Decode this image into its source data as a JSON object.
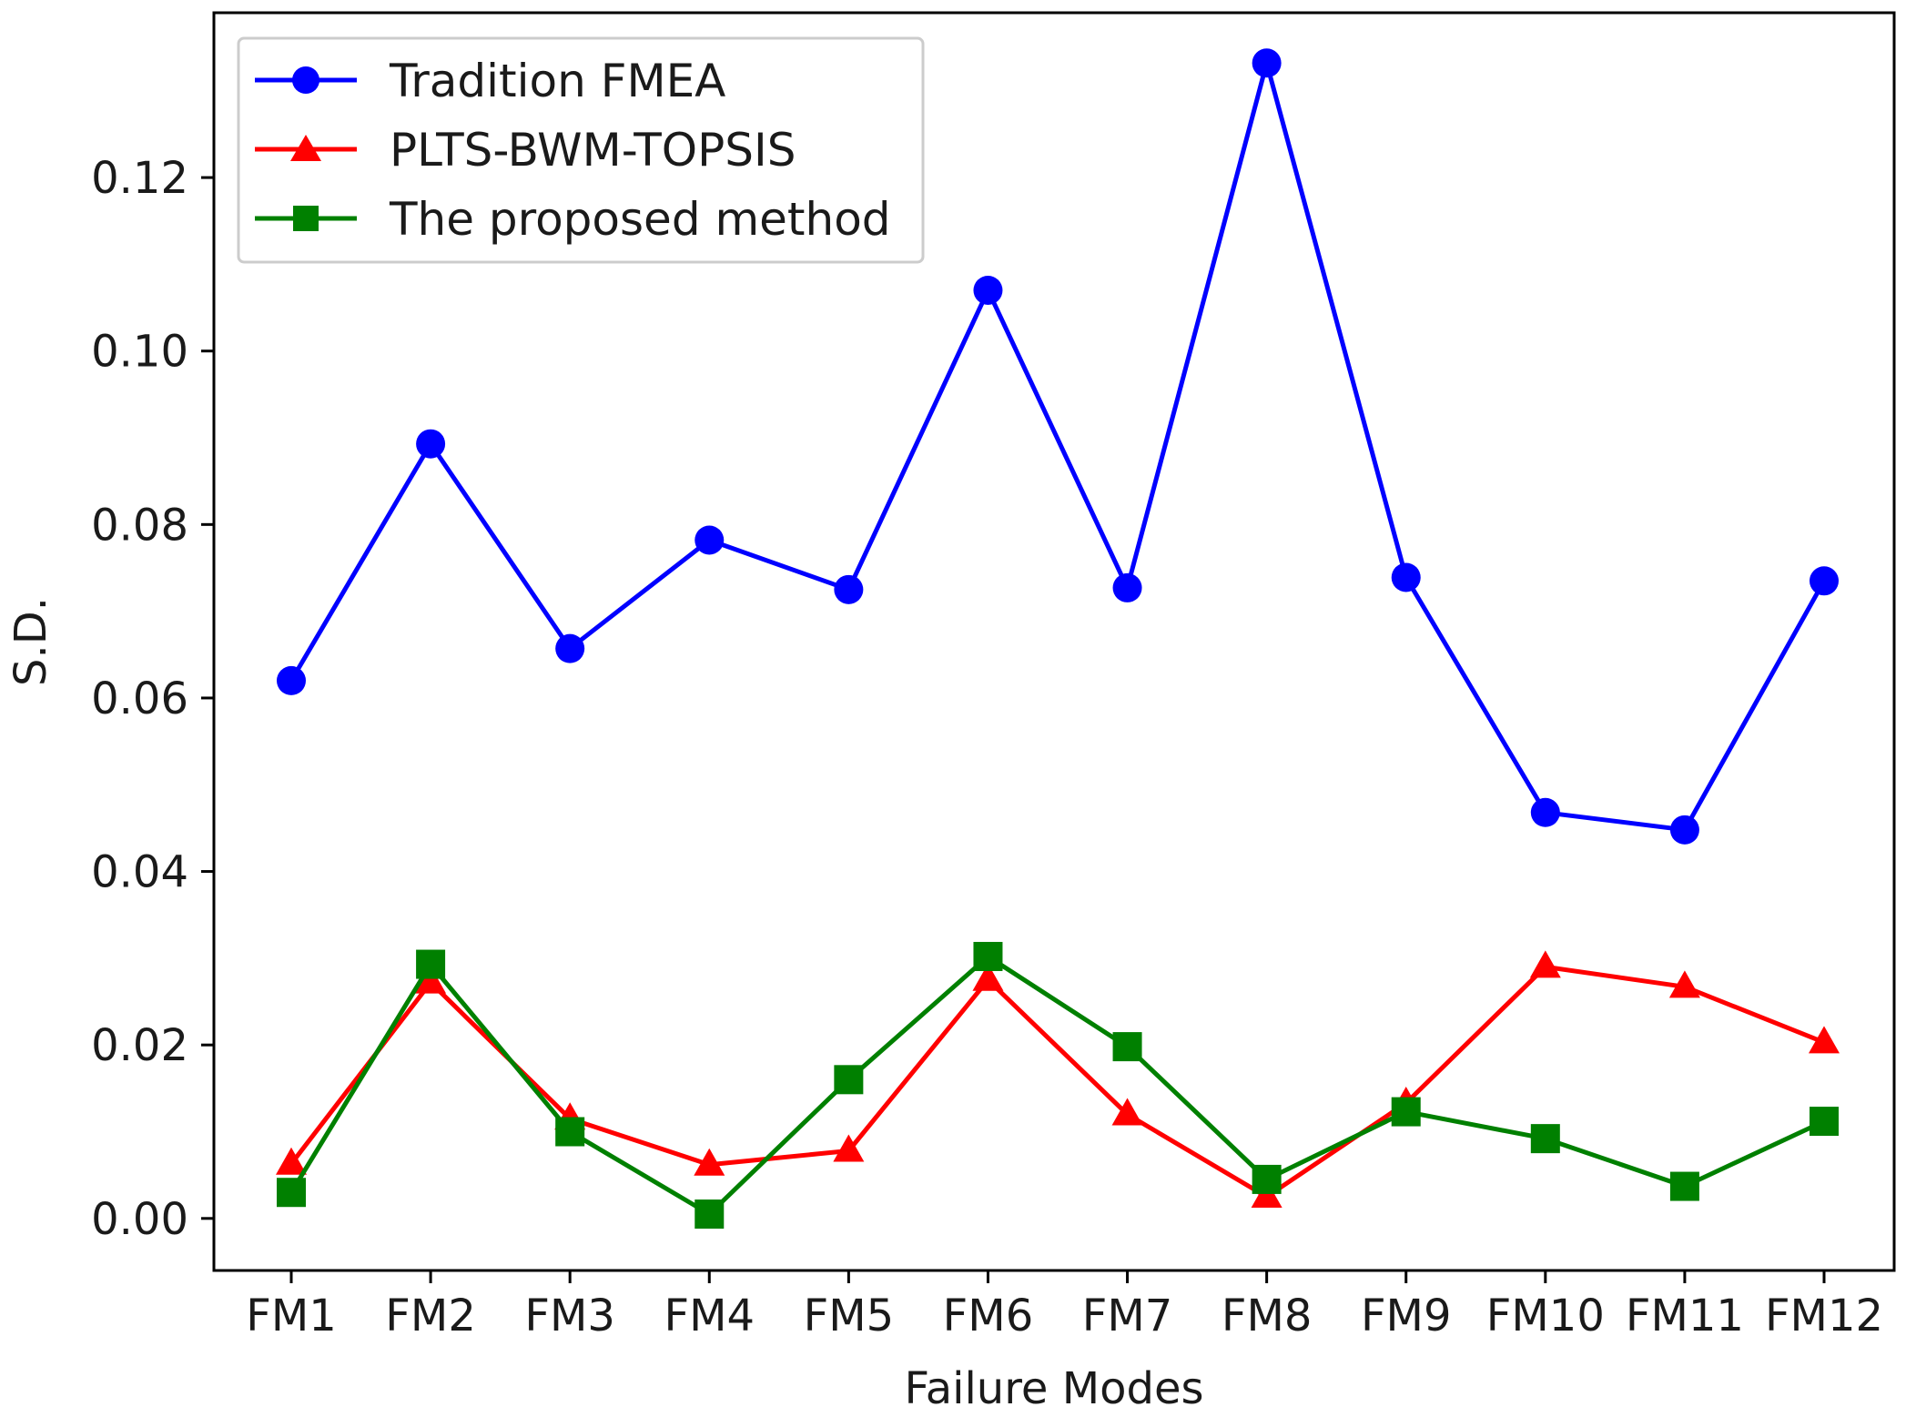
{
  "chart_data": {
    "type": "line",
    "title": "",
    "xlabel": "Failure Modes",
    "ylabel": "S.D.",
    "categories": [
      "FM1",
      "FM2",
      "FM3",
      "FM4",
      "FM5",
      "FM6",
      "FM7",
      "FM8",
      "FM9",
      "FM10",
      "FM11",
      "FM12"
    ],
    "ylim": [
      -0.006,
      0.139
    ],
    "yticks": [
      0.0,
      0.02,
      0.04,
      0.06,
      0.08,
      0.1,
      0.12
    ],
    "ytick_labels": [
      "0.00",
      "0.02",
      "0.04",
      "0.06",
      "0.08",
      "0.10",
      "0.12"
    ],
    "grid": false,
    "legend_position": "top-left",
    "series": [
      {
        "name": "Tradition FMEA",
        "color": "#0000ff",
        "marker": "circle",
        "values": [
          0.062,
          0.0893,
          0.0657,
          0.0782,
          0.0725,
          0.107,
          0.0727,
          0.1332,
          0.0739,
          0.0468,
          0.0448,
          0.0735
        ]
      },
      {
        "name": "PLTS-BWM-TOPSIS",
        "color": "#ff0000",
        "marker": "triangle",
        "values": [
          0.0063,
          0.0272,
          0.0115,
          0.0062,
          0.0078,
          0.0275,
          0.012,
          0.0025,
          0.0133,
          0.029,
          0.0267,
          0.0203
        ]
      },
      {
        "name": "The proposed method",
        "color": "#008000",
        "marker": "square",
        "values": [
          0.003,
          0.0293,
          0.01,
          0.0005,
          0.016,
          0.0302,
          0.0198,
          0.0045,
          0.0123,
          0.0092,
          0.0037,
          0.0112
        ]
      }
    ]
  }
}
